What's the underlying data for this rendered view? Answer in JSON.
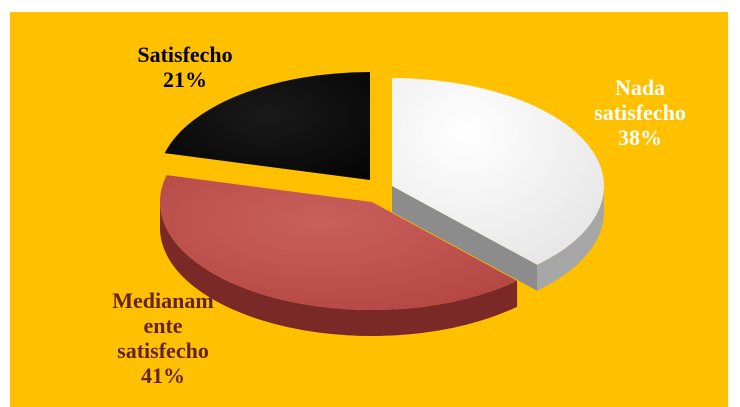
{
  "chart_data": {
    "type": "pie",
    "style": "3d-exploded",
    "background_color": "#FFC000",
    "title": "",
    "slices": [
      {
        "name": "Nada satisfecho",
        "label_lines": [
          "Nada",
          "satisfecho"
        ],
        "value": 38,
        "value_label": "38%",
        "color": "#F2F2F2",
        "label_color": "#FFFFFF"
      },
      {
        "name": "Medianamente satisfecho",
        "label_lines": [
          "Medianam",
          "ente",
          "satisfecho"
        ],
        "value": 41,
        "value_label": "41%",
        "color": "#C0504D",
        "label_color": "#632523"
      },
      {
        "name": "Satisfecho",
        "label_lines": [
          "Satisfecho"
        ],
        "value": 21,
        "value_label": "21%",
        "color": "#0D0D0D",
        "label_color": "#000000"
      }
    ]
  }
}
